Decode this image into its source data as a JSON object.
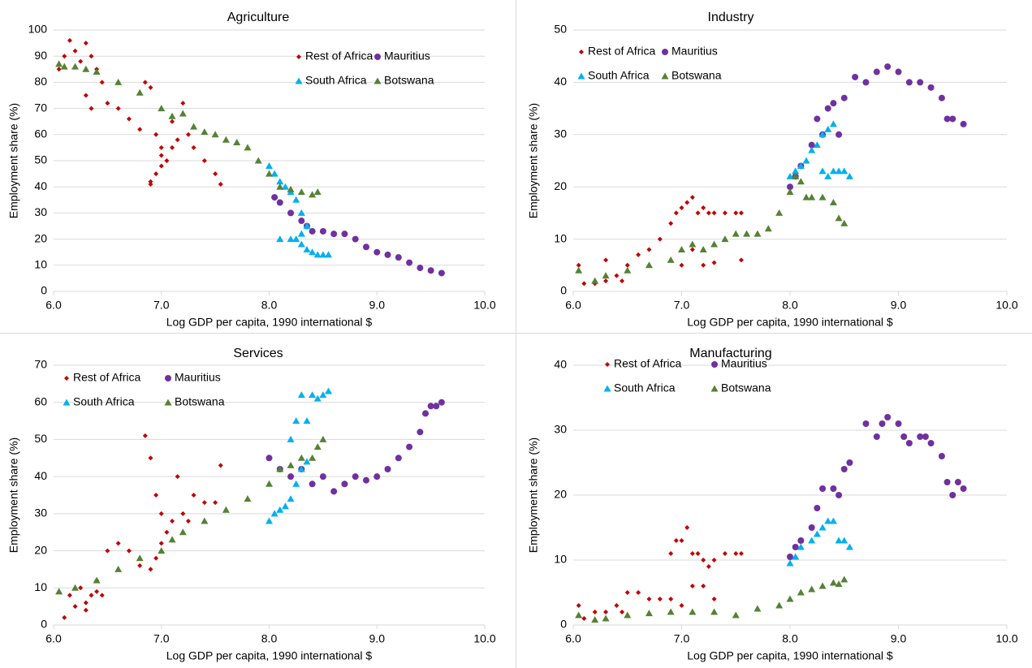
{
  "chart_data": [
    {
      "type": "scatter",
      "title": "Agriculture",
      "x_label": "Log GDP per capita, 1990 international $",
      "y_label": "Employment share (%)",
      "xlim": [
        6,
        10
      ],
      "xticks": [
        {
          "value": 6,
          "label": "6.0"
        },
        {
          "value": 7,
          "label": "7.0"
        },
        {
          "value": 8,
          "label": "8.0"
        },
        {
          "value": 9,
          "label": "9.0"
        },
        {
          "value": 10,
          "label": "10.0"
        }
      ],
      "ylim": [
        0,
        100
      ],
      "yticks": [
        0,
        10,
        20,
        30,
        40,
        50,
        60,
        70,
        80,
        90,
        100
      ],
      "grid": true,
      "series": [
        {
          "name": "Rest of Africa",
          "color": "#c00000",
          "marker": "diamond",
          "x": [
            6.05,
            6.1,
            6.15,
            6.2,
            6.25,
            6.3,
            6.35,
            6.4,
            6.45,
            6.3,
            6.35,
            6.5,
            6.6,
            6.7,
            6.8,
            6.85,
            6.9,
            6.95,
            7.0,
            7.05,
            7.1,
            6.9,
            6.95,
            7.0,
            7.1,
            7.15,
            7.2,
            7.25,
            7.3,
            7.4,
            7.5,
            7.55,
            6.9,
            7.0
          ],
          "y": [
            85,
            90,
            96,
            92,
            88,
            95,
            90,
            85,
            80,
            75,
            70,
            72,
            70,
            66,
            62,
            80,
            78,
            60,
            55,
            50,
            65,
            42,
            45,
            48,
            55,
            58,
            72,
            60,
            55,
            50,
            45,
            41,
            41,
            52
          ]
        },
        {
          "name": "Mauritius",
          "color": "#7030a0",
          "marker": "circle",
          "x": [
            8.05,
            8.1,
            8.2,
            8.3,
            8.35,
            8.4,
            8.5,
            8.6,
            8.7,
            8.8,
            8.9,
            9.0,
            9.1,
            9.2,
            9.3,
            9.4,
            9.5,
            9.6
          ],
          "y": [
            36,
            34,
            30,
            27,
            25,
            23,
            23,
            22,
            22,
            20,
            17,
            15,
            14,
            13,
            11,
            9,
            8,
            7
          ]
        },
        {
          "name": "South Africa",
          "color": "#00b0f0",
          "marker": "triangle",
          "x": [
            8.0,
            8.05,
            8.1,
            8.15,
            8.2,
            8.25,
            8.3,
            8.35,
            8.3,
            8.25,
            8.3,
            8.35,
            8.4,
            8.45,
            8.5,
            8.55,
            8.1,
            8.2
          ],
          "y": [
            48,
            45,
            42,
            40,
            38,
            35,
            30,
            25,
            22,
            20,
            18,
            16,
            15,
            14,
            14,
            14,
            20,
            20
          ]
        },
        {
          "name": "Botswana",
          "color": "#548235",
          "marker": "triangle",
          "x": [
            6.05,
            6.1,
            6.2,
            6.3,
            6.4,
            6.6,
            6.8,
            7.0,
            7.1,
            7.2,
            7.3,
            7.4,
            7.5,
            7.6,
            7.7,
            7.8,
            7.9,
            8.0,
            8.1,
            8.2,
            8.3,
            8.4,
            8.45
          ],
          "y": [
            87,
            86,
            86,
            85,
            84,
            80,
            76,
            70,
            67,
            68,
            63,
            61,
            60,
            58,
            57,
            55,
            50,
            45,
            40,
            39,
            38,
            37,
            38
          ]
        }
      ]
    },
    {
      "type": "scatter",
      "title": "Industry",
      "x_label": "Log GDP per capita, 1990 international $",
      "y_label": "Employment share (%)",
      "xlim": [
        6,
        10
      ],
      "xticks": [
        {
          "value": 6,
          "label": "6.0"
        },
        {
          "value": 7,
          "label": "7.0"
        },
        {
          "value": 8,
          "label": "8.0"
        },
        {
          "value": 9,
          "label": "9.0"
        },
        {
          "value": 10,
          "label": "10.0"
        }
      ],
      "ylim": [
        0,
        50
      ],
      "yticks": [
        0,
        10,
        20,
        30,
        40,
        50
      ],
      "grid": true,
      "series": [
        {
          "name": "Rest of Africa",
          "color": "#c00000",
          "marker": "diamond",
          "x": [
            6.05,
            6.1,
            6.2,
            6.3,
            6.4,
            6.45,
            6.3,
            6.5,
            6.6,
            6.7,
            6.8,
            6.9,
            6.95,
            7.0,
            7.05,
            7.1,
            7.15,
            7.2,
            7.25,
            7.3,
            7.4,
            7.5,
            7.55,
            7.0,
            7.1,
            7.2,
            7.3,
            7.55
          ],
          "y": [
            5,
            1.5,
            1.5,
            2,
            3,
            2,
            6,
            5,
            7,
            8,
            10,
            13,
            15,
            16,
            17,
            18,
            15,
            16,
            15,
            15,
            15,
            15,
            15,
            5,
            8,
            5,
            5.5,
            6
          ]
        },
        {
          "name": "Mauritius",
          "color": "#7030a0",
          "marker": "circle",
          "x": [
            8.0,
            8.05,
            8.1,
            8.2,
            8.25,
            8.3,
            8.35,
            8.4,
            8.45,
            8.5,
            8.6,
            8.7,
            8.8,
            8.9,
            9.0,
            9.1,
            9.2,
            9.3,
            9.4,
            9.45,
            9.5,
            9.6
          ],
          "y": [
            20,
            22,
            24,
            28,
            33,
            30,
            35,
            36,
            30,
            37,
            41,
            40,
            42,
            43,
            42,
            40,
            40,
            39,
            37,
            33,
            33,
            32
          ]
        },
        {
          "name": "South Africa",
          "color": "#00b0f0",
          "marker": "triangle",
          "x": [
            8.0,
            8.05,
            8.1,
            8.15,
            8.2,
            8.25,
            8.3,
            8.35,
            8.4,
            8.3,
            8.35,
            8.4,
            8.45,
            8.5,
            8.55
          ],
          "y": [
            22,
            23,
            24,
            25,
            27,
            28,
            30,
            31,
            32,
            23,
            22,
            23,
            23,
            23,
            22
          ]
        },
        {
          "name": "Botswana",
          "color": "#548235",
          "marker": "triangle",
          "x": [
            6.05,
            6.2,
            6.3,
            6.5,
            6.7,
            6.9,
            7.0,
            7.1,
            7.2,
            7.3,
            7.4,
            7.5,
            7.6,
            7.7,
            7.8,
            7.9,
            8.0,
            8.05,
            8.1,
            8.15,
            8.2,
            8.3,
            8.4,
            8.45,
            8.5
          ],
          "y": [
            4,
            2,
            3,
            4,
            5,
            6,
            8,
            9,
            8,
            9,
            10,
            11,
            11,
            11,
            12,
            15,
            19,
            22,
            21,
            18,
            18,
            18,
            17,
            14,
            13
          ]
        }
      ]
    },
    {
      "type": "scatter",
      "title": "Services",
      "x_label": "Log GDP per capita, 1990 international $",
      "y_label": "Employment share (%)",
      "xlim": [
        6,
        10
      ],
      "xticks": [
        {
          "value": 6,
          "label": "6.0"
        },
        {
          "value": 7,
          "label": "7.0"
        },
        {
          "value": 8,
          "label": "8.0"
        },
        {
          "value": 9,
          "label": "9.0"
        },
        {
          "value": 10,
          "label": "10.0"
        }
      ],
      "ylim": [
        0,
        70
      ],
      "yticks": [
        0,
        10,
        20,
        30,
        40,
        50,
        60,
        70
      ],
      "grid": true,
      "series": [
        {
          "name": "Rest of Africa",
          "color": "#c00000",
          "marker": "diamond",
          "x": [
            6.1,
            6.15,
            6.2,
            6.25,
            6.3,
            6.35,
            6.4,
            6.45,
            6.5,
            6.6,
            6.7,
            6.8,
            6.85,
            6.9,
            6.95,
            7.0,
            7.05,
            7.1,
            7.15,
            7.2,
            7.25,
            7.3,
            7.4,
            7.5,
            7.55,
            6.9,
            6.95,
            7.0,
            6.3,
            6.4
          ],
          "y": [
            2,
            8,
            5,
            10,
            6,
            8,
            12,
            8,
            20,
            22,
            20,
            16,
            51,
            45,
            35,
            30,
            25,
            28,
            40,
            30,
            28,
            35,
            33,
            33,
            43,
            15,
            18,
            22,
            4,
            9
          ]
        },
        {
          "name": "Mauritius",
          "color": "#7030a0",
          "marker": "circle",
          "x": [
            8.0,
            8.1,
            8.2,
            8.3,
            8.4,
            8.5,
            8.6,
            8.7,
            8.8,
            8.9,
            9.0,
            9.1,
            9.2,
            9.3,
            9.4,
            9.45,
            9.5,
            9.55,
            9.6
          ],
          "y": [
            45,
            42,
            40,
            42,
            38,
            40,
            36,
            38,
            40,
            39,
            40,
            42,
            45,
            48,
            52,
            57,
            59,
            59,
            60
          ]
        },
        {
          "name": "South Africa",
          "color": "#00b0f0",
          "marker": "triangle",
          "x": [
            8.0,
            8.05,
            8.1,
            8.15,
            8.2,
            8.25,
            8.3,
            8.35,
            8.2,
            8.25,
            8.3,
            8.35,
            8.4,
            8.45,
            8.5,
            8.55
          ],
          "y": [
            28,
            30,
            31,
            32,
            34,
            38,
            42,
            44,
            50,
            55,
            62,
            55,
            62,
            61,
            62,
            63
          ]
        },
        {
          "name": "Botswana",
          "color": "#548235",
          "marker": "triangle",
          "x": [
            6.05,
            6.2,
            6.4,
            6.6,
            6.8,
            7.0,
            7.1,
            7.2,
            7.4,
            7.6,
            7.8,
            8.0,
            8.1,
            8.2,
            8.3,
            8.4,
            8.45,
            8.5
          ],
          "y": [
            9,
            10,
            12,
            15,
            18,
            20,
            23,
            25,
            28,
            31,
            34,
            38,
            42,
            43,
            45,
            45,
            48,
            50
          ]
        }
      ]
    },
    {
      "type": "scatter",
      "title": "Manufacturing",
      "x_label": "Log GDP per capita, 1990 international $",
      "y_label": "Employment share (%)",
      "xlim": [
        6,
        10
      ],
      "xticks": [
        {
          "value": 6,
          "label": "6.0"
        },
        {
          "value": 7,
          "label": "7.0"
        },
        {
          "value": 8,
          "label": "8.0"
        },
        {
          "value": 9,
          "label": "9.0"
        },
        {
          "value": 10,
          "label": "10.0"
        }
      ],
      "ylim": [
        0,
        40
      ],
      "yticks": [
        0,
        10,
        20,
        30,
        40
      ],
      "grid": true,
      "series": [
        {
          "name": "Rest of Africa",
          "color": "#c00000",
          "marker": "diamond",
          "x": [
            6.05,
            6.1,
            6.2,
            6.3,
            6.4,
            6.45,
            6.5,
            6.6,
            6.7,
            6.8,
            6.9,
            6.95,
            7.0,
            7.05,
            7.1,
            7.15,
            7.2,
            7.25,
            7.3,
            7.4,
            7.5,
            7.55,
            6.9,
            7.0,
            7.1,
            7.2,
            7.3
          ],
          "y": [
            3,
            1,
            2,
            2,
            3,
            2,
            5,
            5,
            4,
            4,
            11,
            13,
            13,
            15,
            11,
            11,
            10,
            9,
            10,
            11,
            11,
            11,
            4,
            3,
            6,
            6,
            4
          ]
        },
        {
          "name": "Mauritius",
          "color": "#7030a0",
          "marker": "circle",
          "x": [
            8.0,
            8.05,
            8.1,
            8.2,
            8.25,
            8.3,
            8.4,
            8.45,
            8.5,
            8.55,
            8.7,
            8.8,
            8.85,
            8.9,
            9.0,
            9.05,
            9.1,
            9.2,
            9.25,
            9.3,
            9.4,
            9.45,
            9.5,
            9.55,
            9.6
          ],
          "y": [
            10.5,
            12,
            13,
            15,
            18,
            21,
            21,
            20,
            24,
            25,
            31,
            29,
            31,
            32,
            31,
            29,
            28,
            29,
            29,
            28,
            26,
            22,
            20,
            22,
            21
          ]
        },
        {
          "name": "South Africa",
          "color": "#00b0f0",
          "marker": "triangle",
          "x": [
            8.0,
            8.05,
            8.1,
            8.2,
            8.25,
            8.3,
            8.35,
            8.4,
            8.45,
            8.5,
            8.55
          ],
          "y": [
            9.5,
            10.5,
            12,
            13,
            14,
            15,
            16,
            16,
            13,
            13,
            12
          ]
        },
        {
          "name": "Botswana",
          "color": "#548235",
          "marker": "triangle",
          "x": [
            6.05,
            6.2,
            6.3,
            6.5,
            6.7,
            6.9,
            7.1,
            7.3,
            7.5,
            7.7,
            7.9,
            8.0,
            8.1,
            8.2,
            8.3,
            8.4,
            8.45,
            8.5
          ],
          "y": [
            1.5,
            0.8,
            1,
            1.5,
            1.8,
            2,
            2,
            2,
            1.5,
            2.5,
            3,
            4,
            5,
            5.5,
            6,
            6.5,
            6.3,
            7
          ]
        }
      ]
    }
  ]
}
